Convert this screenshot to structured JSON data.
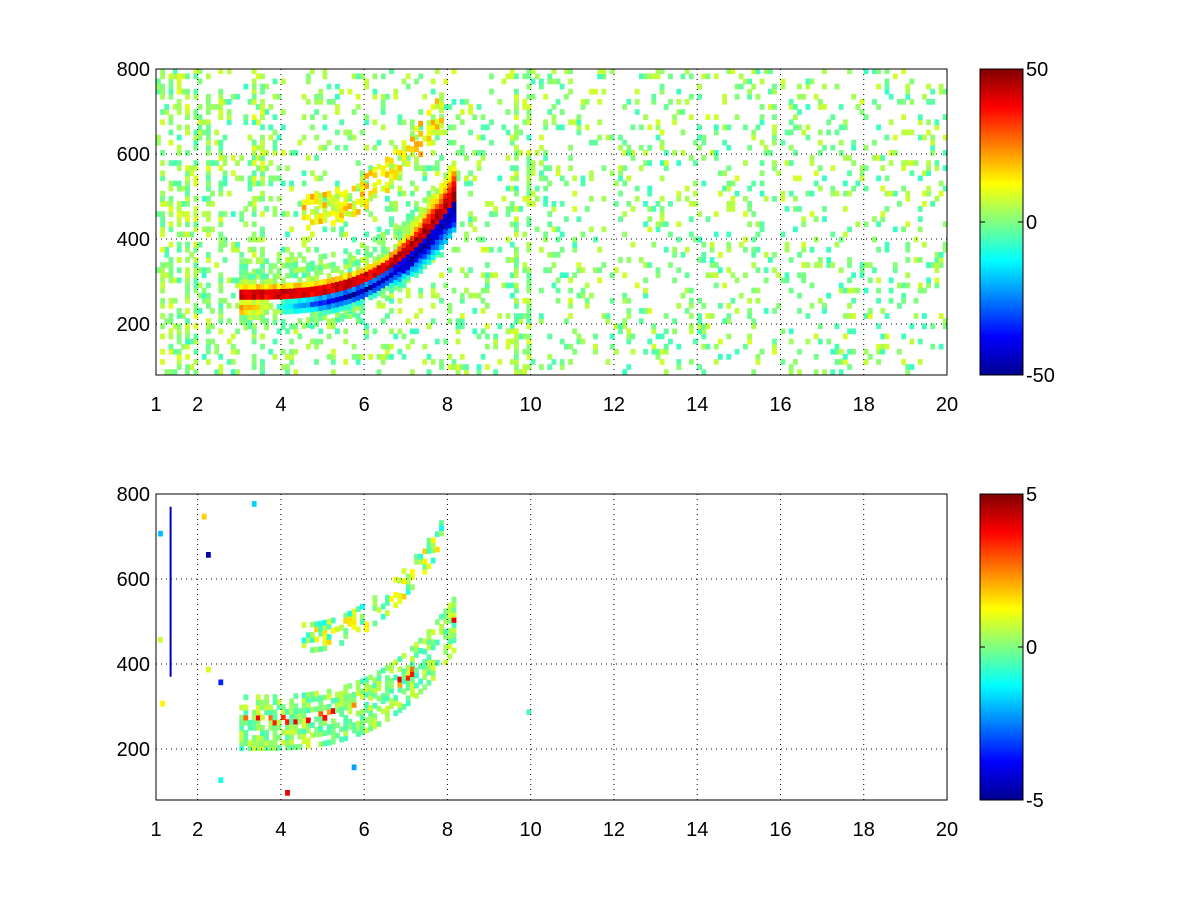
{
  "chart_data": [
    {
      "type": "heatmap",
      "x_ticks": [
        1,
        2,
        4,
        6,
        8,
        10,
        12,
        14,
        16,
        18,
        20
      ],
      "y_ticks": [
        200,
        400,
        600,
        800
      ],
      "xlim": [
        1,
        20
      ],
      "ylim": [
        80,
        800
      ],
      "grid": true,
      "colorbar": {
        "min": -50,
        "max": 50,
        "ticks": [
          50,
          0,
          -50
        ],
        "colormap": "jet"
      },
      "features": {
        "band": {
          "x_start": 3.0,
          "x_end": 8.1,
          "y_base": 255,
          "curve": "rises steeply toward x=8",
          "positive_side": "upper",
          "negative_side": "lower",
          "peak": 45
        },
        "secondary_arc": {
          "x_start": 4.5,
          "x_end": 7.8,
          "y_start": 460,
          "y_end": 700
        },
        "vertical_streaks_x": [
          1.1,
          1.3,
          1.5,
          1.7,
          1.9,
          2.2,
          2.5,
          3.3,
          3.5,
          9.6,
          9.9
        ],
        "noise_density": 0.16,
        "noise_amplitude": 8
      }
    },
    {
      "type": "heatmap",
      "x_ticks": [
        1,
        2,
        4,
        6,
        8,
        10,
        12,
        14,
        16,
        18,
        20
      ],
      "y_ticks": [
        200,
        400,
        600,
        800
      ],
      "xlim": [
        1,
        20
      ],
      "ylim": [
        80,
        800
      ],
      "grid": true,
      "colorbar": {
        "min": -5,
        "max": 5,
        "ticks": [
          5,
          0,
          -5
        ],
        "colormap": "jet"
      },
      "features": {
        "band": {
          "x_start": 3.0,
          "x_end": 8.1,
          "y_base": 255,
          "curve": "rises steeply toward x=8",
          "peak": 4
        },
        "secondary_arc": {
          "x_start": 4.5,
          "x_end": 7.8,
          "y_start": 460,
          "y_end": 700
        },
        "blue_line": {
          "x": 1.35,
          "y_from": 370,
          "y_to": 770
        },
        "sparse_points": [
          [
            1.05,
            700
          ],
          [
            1.05,
            450
          ],
          [
            1.1,
            300
          ],
          [
            2.1,
            740
          ],
          [
            2.2,
            650
          ],
          [
            2.2,
            380
          ],
          [
            2.5,
            350
          ],
          [
            2.5,
            120
          ],
          [
            3.3,
            770
          ],
          [
            4.1,
            90
          ],
          [
            9.9,
            280
          ],
          [
            5.7,
            150
          ]
        ]
      }
    }
  ]
}
